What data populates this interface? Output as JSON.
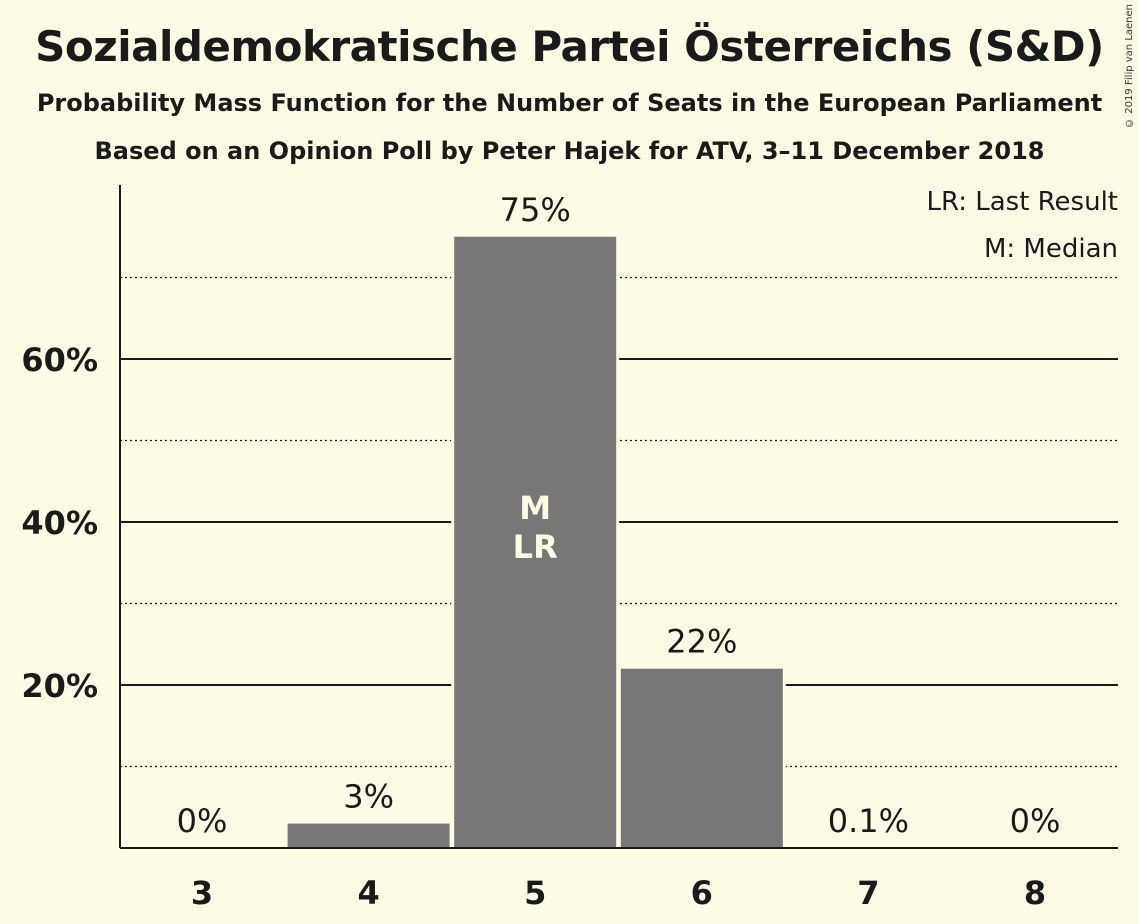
{
  "title": "Sozialdemokratische Partei Österreichs (S&D)",
  "subtitle": "Probability Mass Function for the Number of Seats in the European Parliament",
  "subtitle2": "Based on an Opinion Poll by Peter Hajek for ATV, 3–11 December 2018",
  "copyright": "© 2019 Filip van Laenen",
  "legend": {
    "last_result": "LR: Last Result",
    "median": "M: Median"
  },
  "colors": {
    "background": "#fffce6",
    "bar": "#777777",
    "text": "#1a1a1a",
    "bar_marker_text": "#fffce6"
  },
  "chart_data": {
    "type": "bar",
    "title": "Sozialdemokratische Partei Österreichs (S&D)",
    "xlabel": "",
    "ylabel": "",
    "categories": [
      "3",
      "4",
      "5",
      "6",
      "7",
      "8"
    ],
    "values": [
      0,
      3,
      75,
      22,
      0.1,
      0
    ],
    "value_labels": [
      "0%",
      "3%",
      "75%",
      "22%",
      "0.1%",
      "0%"
    ],
    "ylim": [
      0,
      80
    ],
    "yticks": [
      20,
      40,
      60
    ],
    "ytick_labels": [
      "20%",
      "40%",
      "60%"
    ],
    "minor_gridlines": [
      10,
      30,
      50,
      70
    ],
    "markers": [
      {
        "category": "5",
        "labels": [
          "M",
          "LR"
        ]
      }
    ],
    "grid": true,
    "legend_position": "top-right"
  }
}
